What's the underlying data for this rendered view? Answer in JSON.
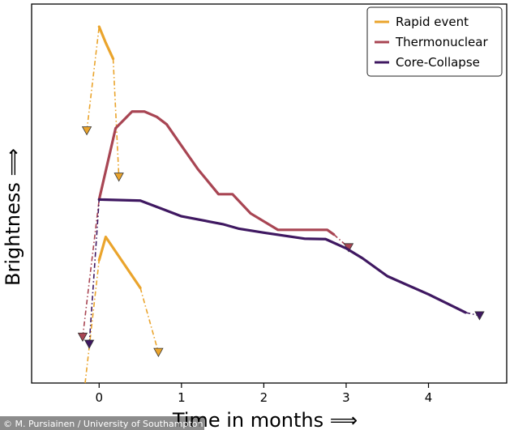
{
  "chart_data": {
    "type": "line",
    "xlabel": "Time in months ⟹",
    "ylabel": "Brightness ⟹",
    "xlim": [
      -0.82,
      4.95
    ],
    "ylim": [
      0,
      100
    ],
    "xticks": [
      0,
      1,
      2,
      3,
      4
    ],
    "legend_position": "top-right",
    "grid": false,
    "series": [
      {
        "name": "Rapid event",
        "color": "#eaa42c",
        "solid_segments": [
          [
            [
              0.0,
              100.0
            ],
            [
              0.08,
              95.5
            ],
            [
              0.17,
              91.0
            ]
          ],
          [
            [
              0.0,
              34.5
            ],
            [
              0.08,
              41.0
            ],
            [
              0.5,
              26.7
            ]
          ]
        ],
        "dashed_segments": [
          [
            [
              -0.15,
              70.8
            ],
            [
              0.0,
              100.0
            ]
          ],
          [
            [
              0.17,
              91.0
            ],
            [
              0.24,
              57.8
            ]
          ],
          [
            [
              -0.17,
              0.0
            ],
            [
              0.0,
              34.5
            ]
          ],
          [
            [
              0.5,
              26.7
            ],
            [
              0.72,
              8.6
            ]
          ]
        ],
        "upper_limits": [
          [
            -0.15,
            70.8
          ],
          [
            0.24,
            57.8
          ],
          [
            0.72,
            8.6
          ]
        ]
      },
      {
        "name": "Thermonuclear",
        "color": "#a84553",
        "solid_segments": [
          [
            [
              0.0,
              51.5
            ],
            [
              0.2,
              71.5
            ],
            [
              0.4,
              76.2
            ],
            [
              0.55,
              76.2
            ],
            [
              0.7,
              74.7
            ],
            [
              0.82,
              72.6
            ],
            [
              1.0,
              66.6
            ],
            [
              1.2,
              60.0
            ],
            [
              1.45,
              53.0
            ],
            [
              1.62,
              53.0
            ],
            [
              1.84,
              47.6
            ],
            [
              2.17,
              43.0
            ],
            [
              2.5,
              43.0
            ],
            [
              2.77,
              43.0
            ],
            [
              2.85,
              41.7
            ]
          ]
        ],
        "dashed_segments": [
          [
            [
              -0.2,
              12.9
            ],
            [
              0.0,
              51.5
            ]
          ],
          [
            [
              2.85,
              41.7
            ],
            [
              3.03,
              38.0
            ]
          ]
        ],
        "upper_limits": [
          [
            -0.2,
            12.9
          ],
          [
            3.03,
            38.0
          ]
        ]
      },
      {
        "name": "Core-Collapse",
        "color": "#3f1861",
        "solid_segments": [
          [
            [
              0.0,
              51.5
            ],
            [
              0.5,
              51.2
            ],
            [
              0.75,
              49.0
            ],
            [
              1.0,
              46.8
            ],
            [
              1.5,
              44.6
            ],
            [
              1.7,
              43.3
            ],
            [
              2.0,
              42.2
            ],
            [
              2.5,
              40.5
            ],
            [
              2.75,
              40.4
            ],
            [
              3.0,
              37.8
            ],
            [
              3.2,
              35.0
            ],
            [
              3.5,
              30.0
            ],
            [
              4.0,
              24.9
            ],
            [
              4.45,
              19.8
            ]
          ]
        ],
        "dashed_segments": [
          [
            [
              -0.12,
              10.9
            ],
            [
              0.0,
              51.5
            ]
          ],
          [
            [
              4.45,
              19.8
            ],
            [
              4.62,
              18.9
            ]
          ]
        ],
        "upper_limits": [
          [
            -0.12,
            10.9
          ],
          [
            4.62,
            18.9
          ]
        ]
      }
    ]
  },
  "credit": "© M. Pursiainen / University of Southampton"
}
